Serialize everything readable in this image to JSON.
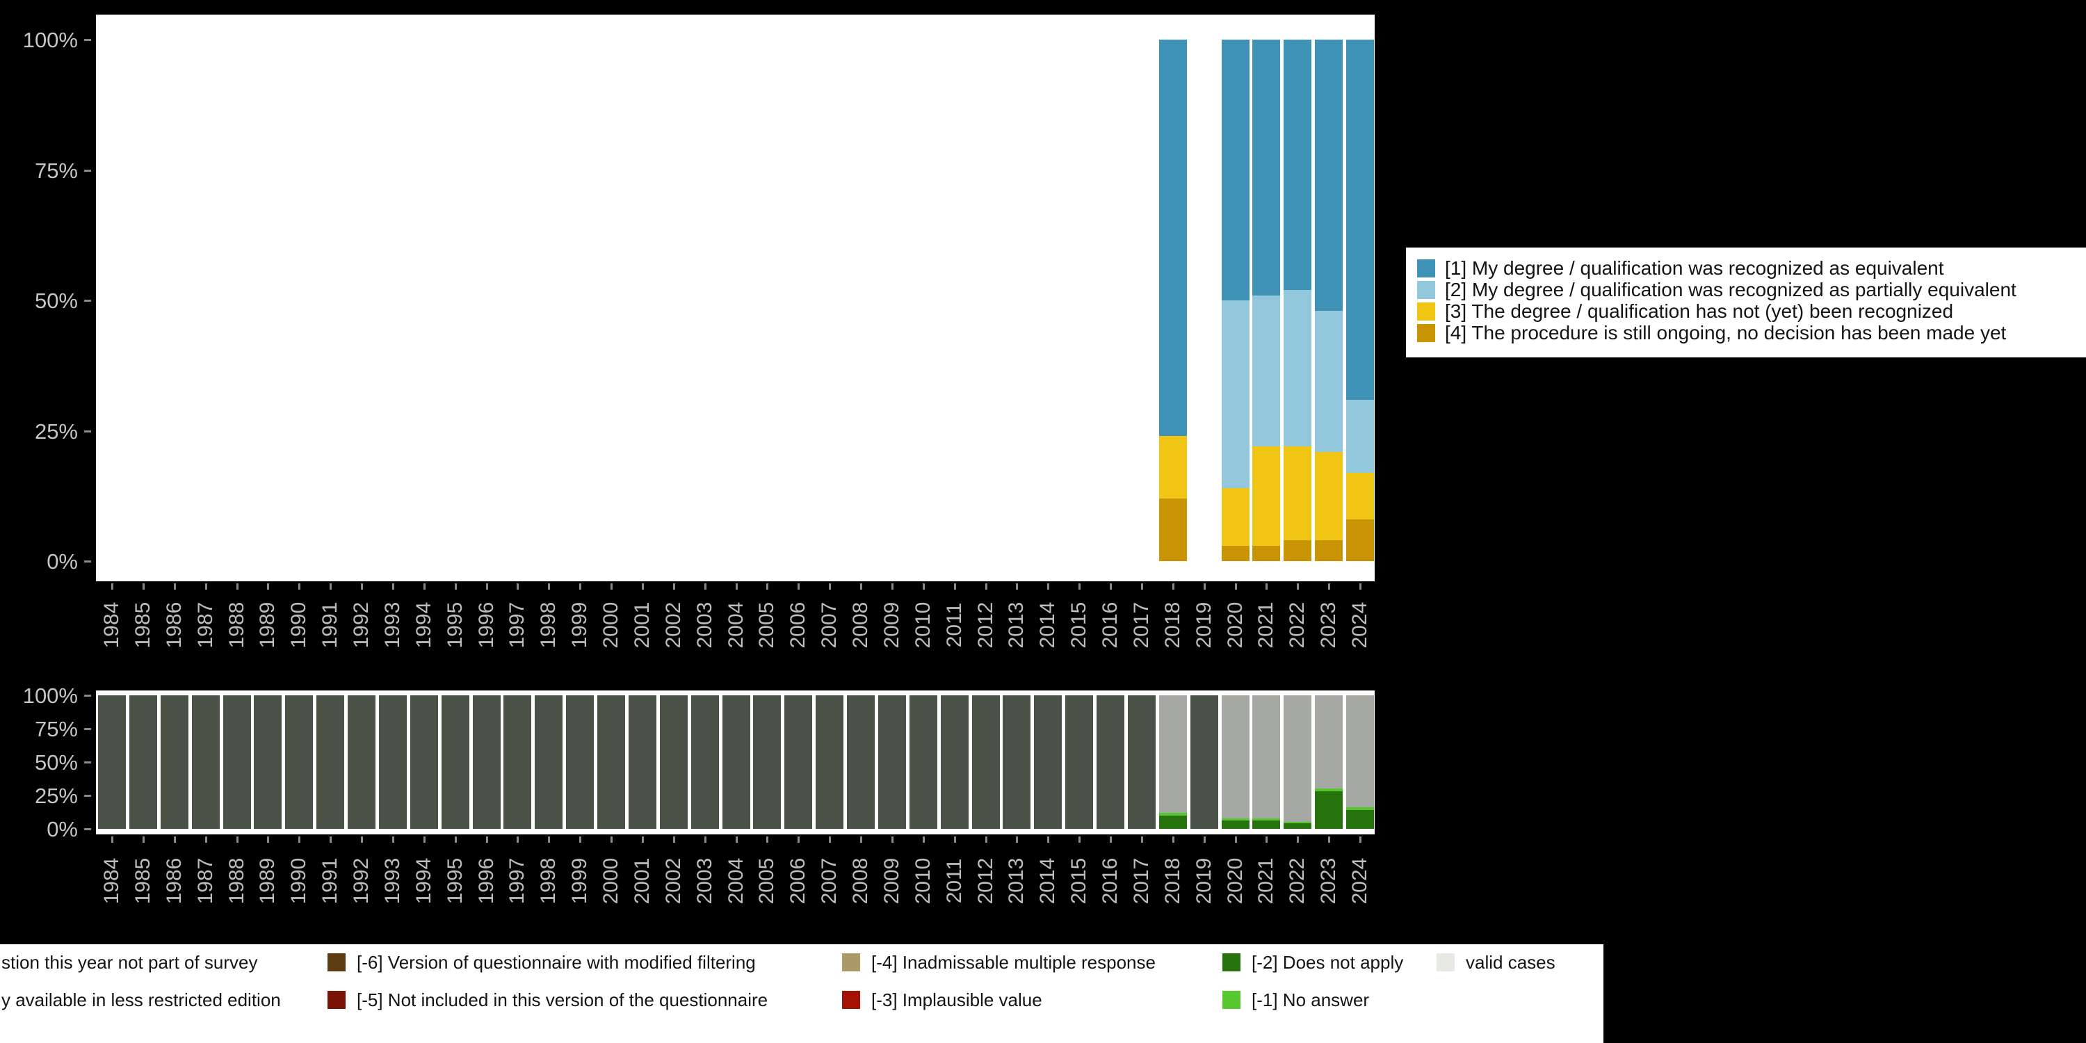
{
  "background": "#000000",
  "axis": {
    "text_color": "#c6c6c6",
    "y_ticks": [
      {
        "label": "0%",
        "value": 0
      },
      {
        "label": "25%",
        "value": 25
      },
      {
        "label": "50%",
        "value": 50
      },
      {
        "label": "75%",
        "value": 75
      },
      {
        "label": "100%",
        "value": 100
      }
    ],
    "years": [
      "1984",
      "1985",
      "1986",
      "1987",
      "1988",
      "1989",
      "1990",
      "1991",
      "1992",
      "1993",
      "1994",
      "1995",
      "1996",
      "1997",
      "1998",
      "1999",
      "2000",
      "2001",
      "2002",
      "2003",
      "2004",
      "2005",
      "2006",
      "2007",
      "2008",
      "2009",
      "2010",
      "2011",
      "2012",
      "2013",
      "2014",
      "2015",
      "2016",
      "2017",
      "2018",
      "2019",
      "2020",
      "2021",
      "2022",
      "2023",
      "2024"
    ]
  },
  "chart_data": [
    {
      "name": "category-percentages",
      "type": "bar",
      "stacked": true,
      "unit": "percent",
      "ylim": [
        0,
        100
      ],
      "x_axis": "years",
      "legend_position": "right",
      "grid": false,
      "stack_order_bottom_up": [
        "cat4",
        "cat3",
        "cat2",
        "cat1"
      ],
      "series": [
        {
          "key": "cat1",
          "label": "[1] My degree / qualification was recognized as equivalent",
          "color": "#3e92b5",
          "values": {
            "2018": 76,
            "2020": 50,
            "2021": 49,
            "2022": 48,
            "2023": 52,
            "2024": 69
          }
        },
        {
          "key": "cat2",
          "label": "[2] My degree / qualification was recognized as partially equivalent",
          "color": "#93c7dc",
          "values": {
            "2020": 36,
            "2021": 29,
            "2022": 30,
            "2023": 27,
            "2024": 14
          }
        },
        {
          "key": "cat3",
          "label": "[3] The degree / qualification has not (yet) been recognized",
          "color": "#f0c514",
          "values": {
            "2018": 12,
            "2020": 11,
            "2021": 19,
            "2022": 18,
            "2023": 17,
            "2024": 9
          }
        },
        {
          "key": "cat4",
          "label": "[4] The procedure is still ongoing, no decision has been made yet",
          "color": "#c89404",
          "values": {
            "2018": 12,
            "2020": 3,
            "2021": 3,
            "2022": 4,
            "2023": 4,
            "2024": 8
          }
        }
      ]
    },
    {
      "name": "missing-values",
      "type": "bar",
      "stacked": true,
      "unit": "percent",
      "ylim": [
        0,
        100
      ],
      "x_axis": "years",
      "grid": false,
      "stack_order_bottom_up": [
        "does_not_apply",
        "no_answer",
        "less_restricted_edition",
        "not_part_of_survey"
      ],
      "series": [
        {
          "key": "not_part_of_survey",
          "label": "stion this year not part of survey",
          "color": "#4a5247",
          "values": {
            "1984": 100,
            "1985": 100,
            "1986": 100,
            "1987": 100,
            "1988": 100,
            "1989": 100,
            "1990": 100,
            "1991": 100,
            "1992": 100,
            "1993": 100,
            "1994": 100,
            "1995": 100,
            "1996": 100,
            "1997": 100,
            "1998": 100,
            "1999": 100,
            "2000": 100,
            "2001": 100,
            "2002": 100,
            "2003": 100,
            "2004": 100,
            "2005": 100,
            "2006": 100,
            "2007": 100,
            "2008": 100,
            "2009": 100,
            "2010": 100,
            "2011": 100,
            "2012": 100,
            "2013": 100,
            "2014": 100,
            "2015": 100,
            "2016": 100,
            "2017": 100,
            "2019": 100
          }
        },
        {
          "key": "less_restricted_edition",
          "label": "y available in less restricted edition",
          "color": "#a6a9a3",
          "values": {
            "2018": 88,
            "2020": 92,
            "2021": 92,
            "2022": 95,
            "2023": 70,
            "2024": 84
          }
        },
        {
          "key": "no_answer",
          "label": "[-1] No answer",
          "color": "#57c72f",
          "values": {
            "2018": 2,
            "2020": 2,
            "2021": 2,
            "2022": 1,
            "2023": 2,
            "2024": 2
          }
        },
        {
          "key": "does_not_apply",
          "label": "[-2] Does not apply",
          "color": "#27730d",
          "values": {
            "2018": 10,
            "2020": 6,
            "2021": 6,
            "2022": 4,
            "2023": 28,
            "2024": 14
          }
        }
      ]
    }
  ],
  "legend_missings": {
    "rows": [
      [
        {
          "label": "stion this year not part of survey",
          "color": null
        },
        {
          "label": "[-6] Version of questionnaire with modified filtering",
          "color": "#5e3c11"
        },
        {
          "label": "[-4] Inadmissable multiple response",
          "color": "#ab9a67"
        },
        {
          "label": "[-2] Does not apply",
          "color": "#27730d"
        },
        {
          "label": "valid cases",
          "color": "#e6eae2"
        }
      ],
      [
        {
          "label": "y available in less restricted edition",
          "color": null
        },
        {
          "label": "[-5] Not included in this version of the questionnaire",
          "color": "#7a1206"
        },
        {
          "label": "[-3] Implausible value",
          "color": "#a31104"
        },
        {
          "label": "[-1] No answer",
          "color": "#57c72f"
        }
      ]
    ]
  }
}
